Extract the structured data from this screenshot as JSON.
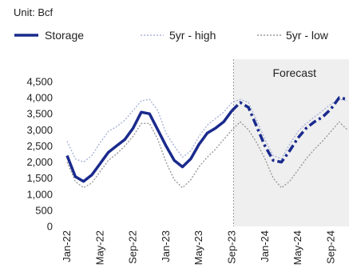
{
  "chart_data": {
    "type": "line",
    "unit_label": "Unit: Bcf",
    "forecast_label": "Forecast",
    "ylim": [
      0,
      4500
    ],
    "yticks": [
      0,
      500,
      1000,
      1500,
      2000,
      2500,
      3000,
      3500,
      4000,
      4500
    ],
    "ytick_labels": [
      "0",
      "500",
      "1,000",
      "1,500",
      "2,000",
      "2,500",
      "3,000",
      "3,500",
      "4,000",
      "4,500"
    ],
    "xtick_labels": [
      "Jan-22",
      "May-22",
      "Sep-22",
      "Jan-23",
      "May-23",
      "Sep-23",
      "Jan-24",
      "May-24",
      "Sep-24"
    ],
    "x_months": [
      "Jan-22",
      "Feb-22",
      "Mar-22",
      "Apr-22",
      "May-22",
      "Jun-22",
      "Jul-22",
      "Aug-22",
      "Sep-22",
      "Oct-22",
      "Nov-22",
      "Dec-22",
      "Jan-23",
      "Feb-23",
      "Mar-23",
      "Apr-23",
      "May-23",
      "Jun-23",
      "Jul-23",
      "Aug-23",
      "Sep-23",
      "Oct-23",
      "Nov-23",
      "Dec-23",
      "Jan-24",
      "Feb-24",
      "Mar-24",
      "Apr-24",
      "May-24",
      "Jun-24",
      "Jul-24",
      "Aug-24",
      "Sep-24",
      "Oct-24",
      "Nov-24"
    ],
    "forecast_start": "Sep-23",
    "series": [
      {
        "name": "Storage",
        "color": "#1a2a8c",
        "style": "solid-then-dashdot",
        "values": [
          2200,
          1550,
          1400,
          1600,
          1950,
          2300,
          2500,
          2700,
          3050,
          3550,
          3500,
          3000,
          2500,
          2050,
          1850,
          2100,
          2550,
          2900,
          3050,
          3250,
          3600,
          3850,
          3700,
          3100,
          2500,
          2050,
          2000,
          2350,
          2750,
          3050,
          3250,
          3400,
          3650,
          4000,
          3950
        ]
      },
      {
        "name": "5yr - high",
        "color": "#a9b4d6",
        "style": "dotted",
        "values": [
          2650,
          2100,
          2000,
          2200,
          2600,
          2950,
          3100,
          3300,
          3600,
          3900,
          3950,
          3600,
          2900,
          2500,
          2150,
          2350,
          2800,
          3150,
          3350,
          3550,
          3850,
          3950,
          3850,
          3300,
          2700,
          2200,
          2100,
          2550,
          2950,
          3200,
          3400,
          3600,
          3800,
          3950,
          3900
        ]
      },
      {
        "name": "5yr - low",
        "color": "#9a9a9a",
        "style": "dotted",
        "values": [
          2000,
          1400,
          1200,
          1350,
          1700,
          2050,
          2250,
          2500,
          2800,
          3200,
          3200,
          2700,
          2000,
          1450,
          1200,
          1450,
          1850,
          2150,
          2400,
          2700,
          3000,
          3250,
          3000,
          2600,
          2100,
          1500,
          1200,
          1400,
          1750,
          2100,
          2400,
          2650,
          2950,
          3250,
          3000
        ]
      }
    ]
  }
}
